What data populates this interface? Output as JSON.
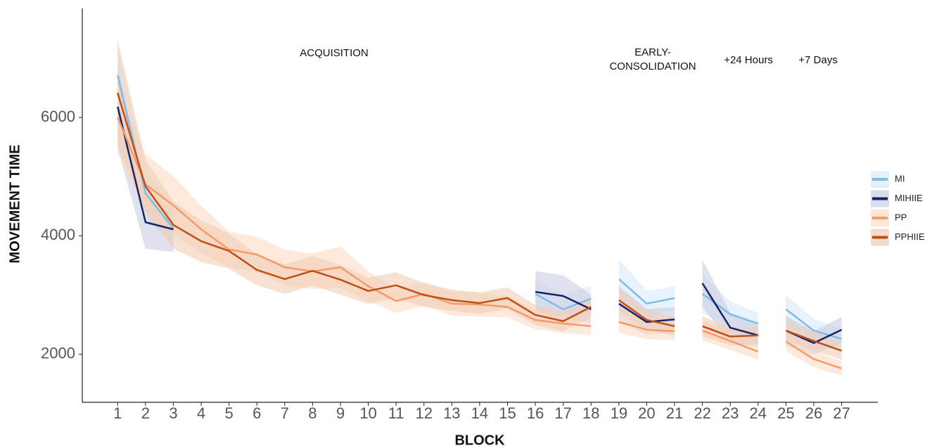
{
  "chart_data": {
    "type": "line",
    "xlabel": "BLOCK",
    "ylabel": "MOVEMENT TIME",
    "x": [
      1,
      2,
      3,
      4,
      5,
      6,
      7,
      8,
      9,
      10,
      11,
      12,
      13,
      14,
      15,
      16,
      17,
      18,
      19,
      20,
      21,
      22,
      23,
      24,
      25,
      26,
      27
    ],
    "xlim": [
      -0.27,
      28.3
    ],
    "xticks": [
      1,
      2,
      3,
      4,
      5,
      6,
      7,
      8,
      9,
      10,
      11,
      12,
      13,
      14,
      15,
      16,
      17,
      18,
      19,
      20,
      21,
      22,
      23,
      24,
      25,
      26,
      27
    ],
    "ylim": [
      1190,
      7840
    ],
    "yticks": [
      2000,
      4000,
      6000
    ],
    "phases": [
      {
        "label": [
          "ACQUISITION"
        ],
        "blocks": [
          1,
          18
        ]
      },
      {
        "label": [
          "EARLY-",
          "CONSOLIDATION"
        ],
        "blocks": [
          19,
          21
        ]
      },
      {
        "label": [
          "+24 Hours"
        ],
        "blocks": [
          22,
          24
        ]
      },
      {
        "label": [
          "+7 Days"
        ],
        "blocks": [
          25,
          27
        ]
      }
    ],
    "legend": "right",
    "series": [
      {
        "name": "MI",
        "color": "#7bbde8",
        "band_color": "#d8e9f8",
        "values": [
          6712,
          4720,
          4125,
          null,
          null,
          null,
          null,
          null,
          null,
          null,
          null,
          null,
          null,
          null,
          null,
          3020,
          2760,
          2940,
          3270,
          2855,
          2950,
          3020,
          2676,
          2520,
          2760,
          2400,
          2260
        ],
        "error": [
          500,
          400,
          300,
          null,
          null,
          null,
          null,
          null,
          null,
          null,
          null,
          null,
          null,
          null,
          null,
          250,
          230,
          220,
          330,
          220,
          200,
          330,
          220,
          180,
          240,
          200,
          170
        ]
      },
      {
        "name": "MIHIIE",
        "color": "#14236b",
        "band_color": "#c9cde3",
        "values": [
          6180,
          4230,
          4110,
          null,
          null,
          null,
          null,
          null,
          null,
          null,
          null,
          null,
          null,
          null,
          null,
          3055,
          2985,
          2760,
          2855,
          2545,
          2590,
          3200,
          2450,
          2320,
          2400,
          2190,
          2415
        ],
        "error": [
          700,
          450,
          380,
          null,
          null,
          null,
          null,
          null,
          null,
          null,
          null,
          null,
          null,
          null,
          null,
          350,
          350,
          250,
          300,
          220,
          200,
          400,
          250,
          200,
          250,
          200,
          220
        ]
      },
      {
        "name": "PP",
        "color": "#f39a68",
        "band_color": "#fbdcc7",
        "values": [
          6000,
          4870,
          4515,
          4110,
          3770,
          3685,
          3470,
          3400,
          3470,
          3150,
          2900,
          3020,
          2855,
          2840,
          2800,
          2580,
          2520,
          2475,
          2545,
          2415,
          2390,
          2400,
          2225,
          2045,
          2215,
          1920,
          1760
        ],
        "error": [
          600,
          500,
          500,
          400,
          300,
          300,
          300,
          300,
          350,
          250,
          200,
          200,
          200,
          200,
          180,
          160,
          160,
          150,
          180,
          160,
          150,
          170,
          150,
          140,
          160,
          140,
          120
        ]
      },
      {
        "name": "PPHIIE",
        "color": "#c24e14",
        "band_color": "#f0cdb6",
        "values": [
          6415,
          4835,
          4185,
          3910,
          3745,
          3425,
          3270,
          3410,
          3260,
          3070,
          3165,
          3000,
          2915,
          2865,
          2950,
          2665,
          2560,
          2800,
          2915,
          2580,
          2475,
          2475,
          2300,
          2320,
          2400,
          2225,
          2060
        ],
        "error": [
          900,
          450,
          400,
          350,
          300,
          260,
          250,
          250,
          250,
          220,
          220,
          200,
          180,
          180,
          180,
          170,
          170,
          170,
          200,
          170,
          160,
          170,
          150,
          150,
          170,
          160,
          150
        ]
      }
    ]
  }
}
